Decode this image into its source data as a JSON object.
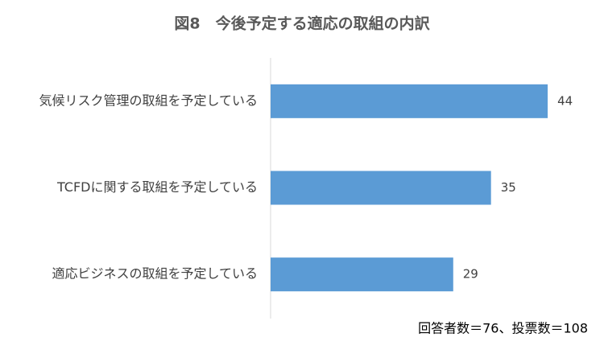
{
  "chart_data": {
    "type": "bar",
    "orientation": "horizontal",
    "title": "図8　今後予定する適応の取組の内訳",
    "categories": [
      "気候リスク管理の取組を予定している",
      "TCFDに関する取組を予定している",
      "適応ビジネスの取組を予定している"
    ],
    "values": [
      44,
      35,
      29
    ],
    "color": "#5b9bd5",
    "xlim": [
      0,
      50
    ],
    "note": "回答者数＝76、投票数＝108"
  }
}
